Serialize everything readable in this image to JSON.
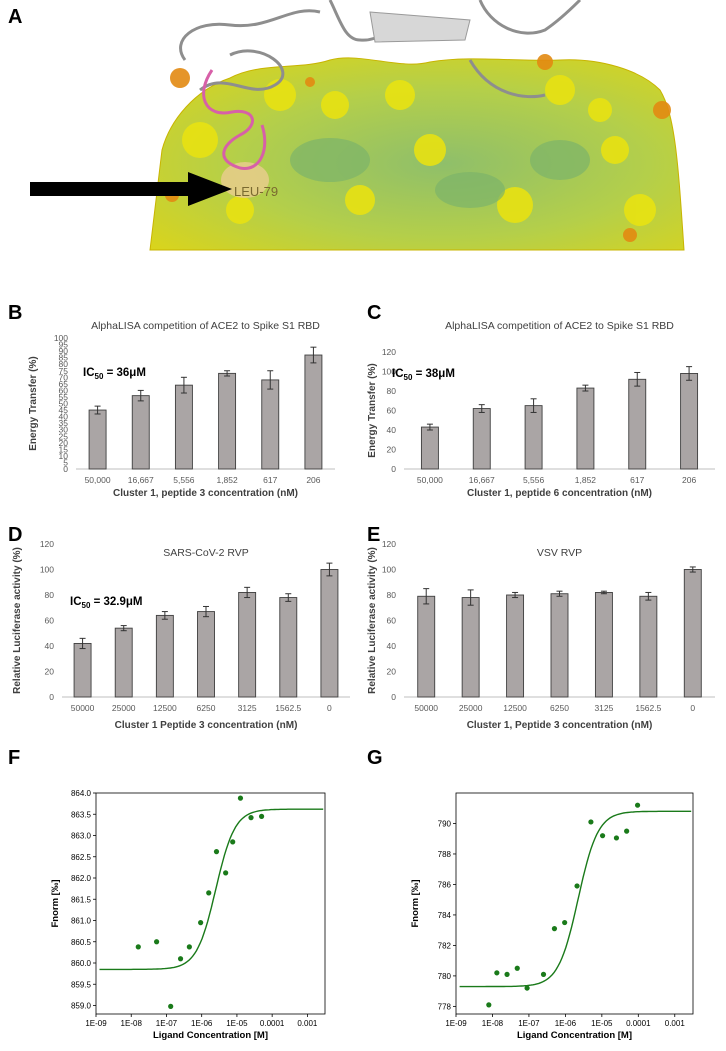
{
  "panel_labels": {
    "A": "A",
    "B": "B",
    "C": "C",
    "D": "D",
    "E": "E",
    "F": "F",
    "G": "G"
  },
  "structure": {
    "residue_label": "LEU-79"
  },
  "chart_data": [
    {
      "id": "B",
      "type": "bar",
      "title": "AlphaLISA competition of ACE2 to Spike S1 RBD",
      "xlabel": "Cluster 1, peptide 3 concentration (nM)",
      "ylabel": "Energy Transfer (%)",
      "annotation": {
        "prefix": "IC",
        "sub": "50",
        "value": " = 36μM"
      },
      "categories": [
        "50,000",
        "16,667",
        "5,556",
        "1,852",
        "617",
        "206"
      ],
      "values": [
        45,
        56,
        64,
        73,
        68,
        87
      ],
      "errors": [
        3,
        4,
        6,
        2,
        7,
        6
      ],
      "ylim": [
        0,
        100
      ],
      "yticks": [
        "0",
        "5",
        "10",
        "15",
        "20",
        "25",
        "30",
        "35",
        "40",
        "45",
        "50",
        "55",
        "60",
        "65",
        "70",
        "75",
        "80",
        "85",
        "90",
        "95",
        "100"
      ]
    },
    {
      "id": "C",
      "type": "bar",
      "title": "AlphaLISA competition of ACE2 to Spike S1 RBD",
      "xlabel": "Cluster 1, peptide 6 concentration (nM)",
      "ylabel": "Energy Transfer (%)",
      "annotation": {
        "prefix": "IC",
        "sub": "50",
        "value": " = 38μM"
      },
      "categories": [
        "50,000",
        "16,667",
        "5,556",
        "1,852",
        "617",
        "206"
      ],
      "values": [
        43,
        62,
        65,
        83,
        92,
        98
      ],
      "errors": [
        3,
        4,
        7,
        3,
        7,
        7
      ],
      "ylim": [
        0,
        120
      ],
      "yticks": [
        "0",
        "20",
        "40",
        "60",
        "80",
        "100",
        "120"
      ]
    },
    {
      "id": "D",
      "type": "bar",
      "title": "SARS-CoV-2 RVP",
      "xlabel": "Cluster 1 Peptide 3 concentration (nM)",
      "ylabel": "Relative Luciferase activity (%)",
      "annotation": {
        "prefix": "IC",
        "sub": "50",
        "value": " = 32.9μM"
      },
      "categories": [
        "50000",
        "25000",
        "12500",
        "6250",
        "3125",
        "1562.5",
        "0"
      ],
      "values": [
        42,
        54,
        64,
        67,
        82,
        78,
        100
      ],
      "errors": [
        4,
        2,
        3,
        4,
        4,
        3,
        5
      ],
      "ylim": [
        0,
        120
      ],
      "yticks": [
        "0",
        "20",
        "40",
        "60",
        "80",
        "100",
        "120"
      ]
    },
    {
      "id": "E",
      "type": "bar",
      "title": "VSV RVP",
      "xlabel": "Cluster 1, Peptide 3 concentration (nM)",
      "ylabel": "Relative Luciferase activity (%)",
      "categories": [
        "50000",
        "25000",
        "12500",
        "6250",
        "3125",
        "1562.5",
        "0"
      ],
      "values": [
        79,
        78,
        80,
        81,
        82,
        79,
        100
      ],
      "errors": [
        6,
        6,
        2,
        2,
        1,
        3,
        2
      ],
      "ylim": [
        0,
        120
      ],
      "yticks": [
        "0",
        "20",
        "40",
        "60",
        "80",
        "100",
        "120"
      ]
    },
    {
      "id": "F",
      "type": "scatter",
      "xlabel": "Ligand Concentration [M]",
      "ylabel": "Fnorm [‰]",
      "xlog": [
        -9,
        -2.5
      ],
      "xticks": [
        {
          "v": -9,
          "label": "1E-09"
        },
        {
          "v": -8,
          "label": "1E-08"
        },
        {
          "v": -7,
          "label": "1E-07"
        },
        {
          "v": -6,
          "label": "1E-06"
        },
        {
          "v": -5,
          "label": "1E-05"
        },
        {
          "v": -4,
          "label": "0.0001"
        },
        {
          "v": -3,
          "label": "0.001"
        }
      ],
      "ylim": [
        858.8,
        864.0
      ],
      "yticks": [
        {
          "v": 859.0,
          "label": "859.0"
        },
        {
          "v": 859.5,
          "label": "859.5"
        },
        {
          "v": 860.0,
          "label": "860.0"
        },
        {
          "v": 860.5,
          "label": "860.5"
        },
        {
          "v": 861.0,
          "label": "861.0"
        },
        {
          "v": 861.5,
          "label": "861.5"
        },
        {
          "v": 862.0,
          "label": "862.0"
        },
        {
          "v": 862.5,
          "label": "862.5"
        },
        {
          "v": 863.0,
          "label": "863.0"
        },
        {
          "v": 863.5,
          "label": "863.5"
        },
        {
          "v": 864.0,
          "label": "864.0"
        }
      ],
      "points": [
        [
          -7.8,
          860.38
        ],
        [
          -7.28,
          860.5
        ],
        [
          -6.88,
          858.98
        ],
        [
          -6.6,
          860.1
        ],
        [
          -6.35,
          860.38
        ],
        [
          -6.03,
          860.95
        ],
        [
          -5.8,
          861.65
        ],
        [
          -5.58,
          862.62
        ],
        [
          -5.32,
          862.12
        ],
        [
          -5.12,
          862.85
        ],
        [
          -4.9,
          863.88
        ],
        [
          -4.6,
          863.42
        ],
        [
          -4.3,
          863.45
        ]
      ],
      "fit": {
        "bottom": 859.85,
        "top": 863.62,
        "log_ec50": -5.6,
        "slope": 1.0
      }
    },
    {
      "id": "G",
      "type": "scatter",
      "xlabel": "Ligand Concentration [M]",
      "ylabel": "Fnorm [‰]",
      "xlog": [
        -9,
        -2.5
      ],
      "xticks": [
        {
          "v": -9,
          "label": "1E-09"
        },
        {
          "v": -8,
          "label": "1E-08"
        },
        {
          "v": -7,
          "label": "1E-07"
        },
        {
          "v": -6,
          "label": "1E-06"
        },
        {
          "v": -5,
          "label": "1E-05"
        },
        {
          "v": -4,
          "label": "0.0001"
        },
        {
          "v": -3,
          "label": "0.001"
        }
      ],
      "ylim": [
        777.5,
        792
      ],
      "yticks": [
        {
          "v": 778,
          "label": "778"
        },
        {
          "v": 780,
          "label": "780"
        },
        {
          "v": 782,
          "label": "782"
        },
        {
          "v": 784,
          "label": "784"
        },
        {
          "v": 786,
          "label": "786"
        },
        {
          "v": 788,
          "label": "788"
        },
        {
          "v": 790,
          "label": "790"
        }
      ],
      "points": [
        [
          -8.1,
          778.1
        ],
        [
          -7.88,
          780.2
        ],
        [
          -7.6,
          780.1
        ],
        [
          -7.32,
          780.5
        ],
        [
          -7.05,
          779.2
        ],
        [
          -6.6,
          780.1
        ],
        [
          -6.3,
          783.1
        ],
        [
          -6.02,
          783.5
        ],
        [
          -5.68,
          785.9
        ],
        [
          -5.3,
          790.1
        ],
        [
          -4.98,
          789.2
        ],
        [
          -4.6,
          789.05
        ],
        [
          -4.32,
          789.5
        ],
        [
          -4.02,
          791.2
        ]
      ],
      "fit": {
        "bottom": 779.3,
        "top": 790.8,
        "log_ec50": -5.65,
        "slope": 1.0
      }
    }
  ]
}
